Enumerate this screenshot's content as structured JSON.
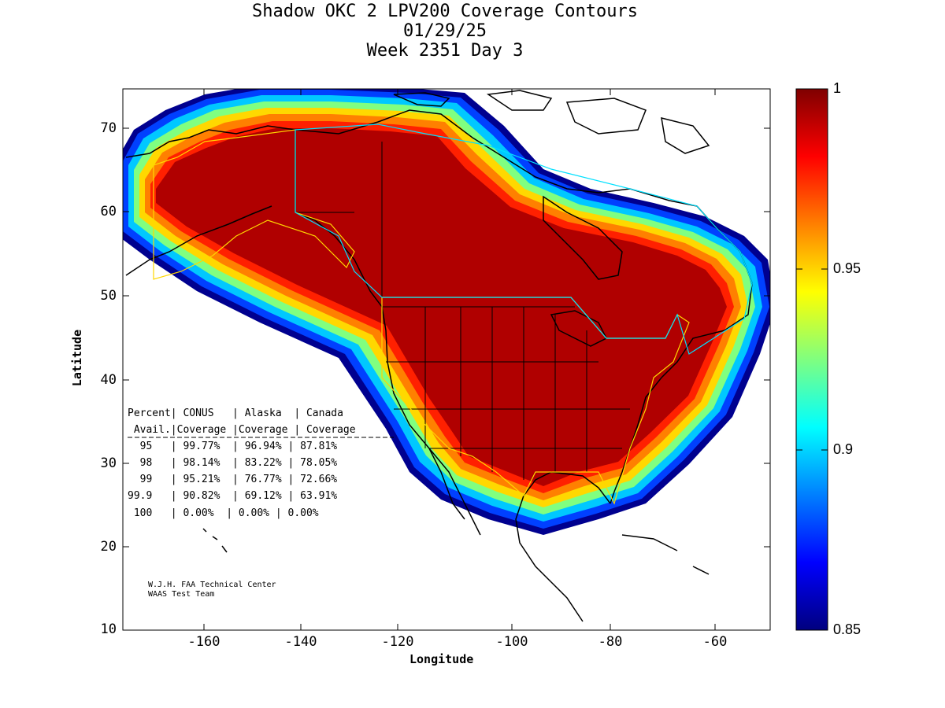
{
  "title": {
    "line1": "Shadow OKC 2 LPV200 Coverage Contours",
    "line2": "01/29/25",
    "line3": "Week 2351 Day 3"
  },
  "axes": {
    "xlabel": "Longitude",
    "ylabel": "Latitude",
    "xticks": [
      "-160",
      "-140",
      "-120",
      "-100",
      "-80",
      "-60"
    ],
    "yticks": [
      "70",
      "60",
      "50",
      "40",
      "30",
      "20",
      "10"
    ],
    "xlim": [
      -175,
      -50
    ],
    "ylim": [
      10,
      75
    ]
  },
  "colorbar": {
    "labels": [
      "1",
      "0.95",
      "0.9",
      "0.85"
    ],
    "range": [
      0.85,
      1.0
    ],
    "colormap": "jet"
  },
  "stats_table": {
    "header1": "Percent| CONUS   | Alaska  | Canada",
    "header2": " Avail.|Coverage |Coverage | Coverage",
    "rows": [
      "  95   | 99.77%  | 96.94% | 87.81%",
      "  98   | 98.14%  | 83.22% | 78.05%",
      "  99   | 95.21%  | 76.77% | 72.66%",
      "99.9   | 90.82%  | 69.12% | 63.91%",
      " 100   | 0.00%  | 0.00% | 0.00%"
    ]
  },
  "credits": {
    "line1": "W.J.H. FAA Technical Center",
    "line2": "WAAS Test Team"
  },
  "colors": {
    "core": "#b00000",
    "contour_edge": "#00008f",
    "service_border_conus": "#ffd700",
    "service_border_canada": "#00e0ff"
  }
}
